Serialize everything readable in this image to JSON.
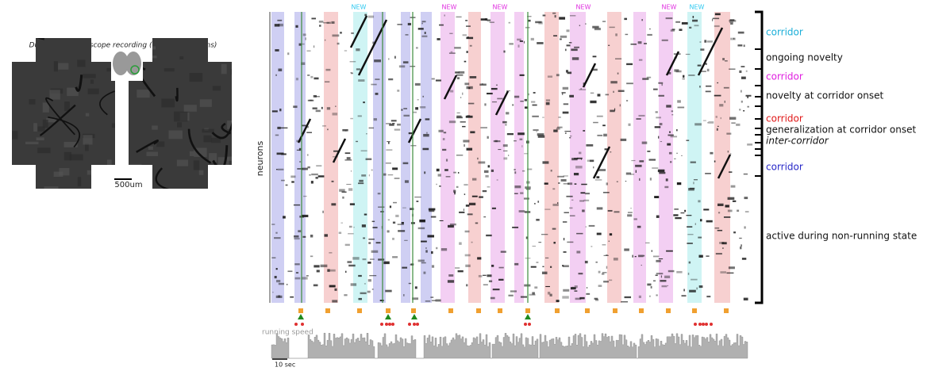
{
  "figure": {
    "inset_title": "Dual-plane mesoscope recording (~50,000 neurons)",
    "scale_bar": "500um",
    "y_axis_label": "neurons",
    "new_labels": [
      {
        "text": "NEW",
        "color": "#2ec8f0"
      },
      {
        "text": "NEW",
        "color": "#e030e0"
      },
      {
        "text": "NEW",
        "color": "#e030e0"
      },
      {
        "text": "NEW",
        "color": "#e030e0"
      },
      {
        "text": "NEW",
        "color": "#e030e0"
      },
      {
        "text": "NEW",
        "color": "#2ec8f0"
      }
    ],
    "groups": [
      {
        "label": "corridor",
        "color": "#1aaed8"
      },
      {
        "label": "ongoing novelty",
        "color": "#111111"
      },
      {
        "label": "corridor",
        "color": "#e020e0"
      },
      {
        "label": "novelty at corridor onset",
        "color": "#111111"
      },
      {
        "label": "corridor",
        "color": "#e01818"
      },
      {
        "label": "generalization at corridor onset",
        "color": "#111111"
      },
      {
        "label": "inter-corridor",
        "color": "#111111"
      },
      {
        "label": "corridor",
        "color": "#2828c8"
      },
      {
        "label": "active during non-running state",
        "color": "#111111"
      }
    ],
    "trace_label": "running speed",
    "time_scale": "10 sec"
  }
}
